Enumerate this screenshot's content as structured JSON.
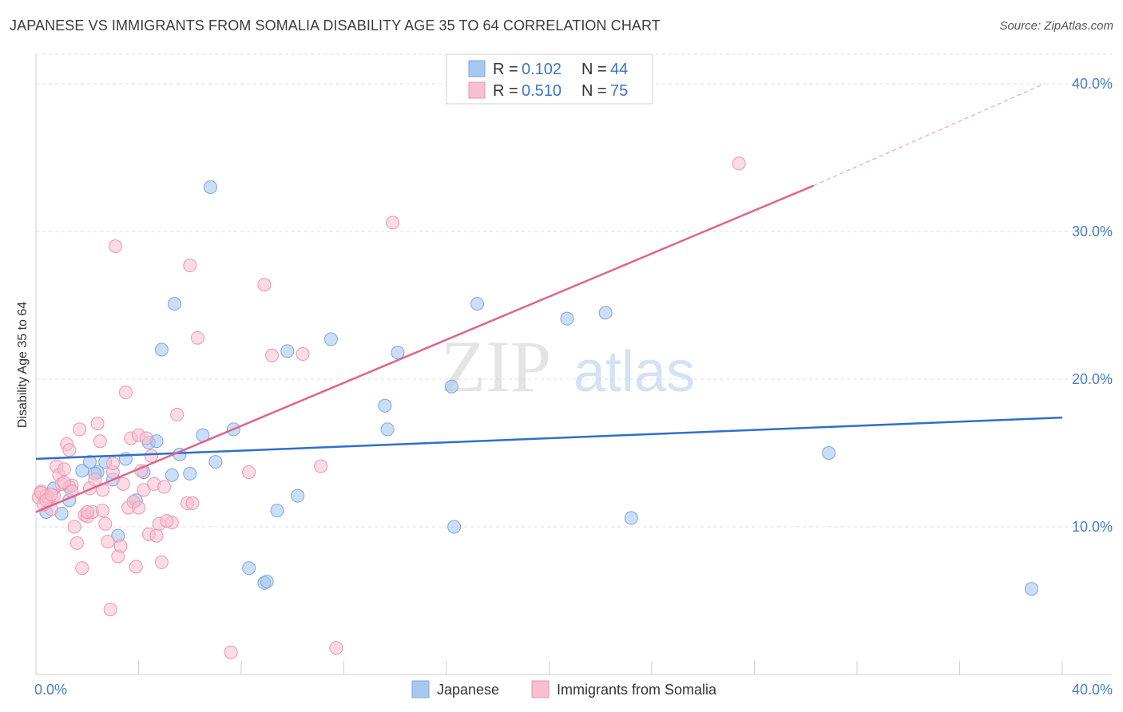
{
  "header": {
    "title": "JAPANESE VS IMMIGRANTS FROM SOMALIA DISABILITY AGE 35 TO 64 CORRELATION CHART",
    "source": "Source: ZipAtlas.com"
  },
  "watermark": {
    "zip": "ZIP",
    "atlas": "atlas"
  },
  "legend": {
    "rows": [
      {
        "r_label": "R =",
        "r_value": "0.102",
        "n_label": "N =",
        "n_value": "44"
      },
      {
        "r_label": "R =",
        "r_value": "0.510",
        "n_label": "N =",
        "n_value": "75"
      }
    ]
  },
  "colors": {
    "japanese_fill": "#a9c8f0",
    "japanese_stroke": "#7aa6e0",
    "japanese_line": "#2f6fca",
    "somalia_fill": "#f7bfd0",
    "somalia_stroke": "#ef93b0",
    "somalia_line": "#e0648c",
    "tick_text": "#4a7cc9",
    "grid": "#dddddd"
  },
  "chart_data": {
    "type": "scatter",
    "xlabel": "",
    "ylabel": "Disability Age 35 to 64",
    "xlim": [
      0,
      40
    ],
    "ylim": [
      0,
      42
    ],
    "x_tick_labels": [
      "0.0%",
      "40.0%"
    ],
    "y_ticks": [
      10,
      20,
      30,
      40
    ],
    "y_tick_labels": [
      "10.0%",
      "20.0%",
      "30.0%",
      "40.0%"
    ],
    "grid": true,
    "legend_position": "top-center",
    "series": [
      {
        "name": "Japanese",
        "color": "#a9c8f0",
        "trend": {
          "x": [
            0,
            40
          ],
          "y": [
            14.6,
            17.4
          ]
        },
        "points": [
          [
            0.4,
            11.0
          ],
          [
            0.7,
            12.6
          ],
          [
            1.3,
            11.8
          ],
          [
            1.0,
            10.9
          ],
          [
            1.3,
            12.7
          ],
          [
            1.8,
            13.8
          ],
          [
            2.1,
            14.4
          ],
          [
            2.4,
            13.7
          ],
          [
            2.7,
            14.4
          ],
          [
            3.0,
            13.2
          ],
          [
            3.5,
            14.6
          ],
          [
            3.9,
            11.8
          ],
          [
            4.2,
            13.7
          ],
          [
            4.4,
            15.7
          ],
          [
            4.7,
            15.8
          ],
          [
            4.9,
            22.0
          ],
          [
            5.3,
            13.5
          ],
          [
            5.6,
            14.9
          ],
          [
            6.0,
            13.6
          ],
          [
            6.5,
            16.2
          ],
          [
            7.0,
            14.4
          ],
          [
            7.7,
            16.6
          ],
          [
            8.3,
            7.2
          ],
          [
            8.9,
            6.2
          ],
          [
            9.0,
            6.3
          ],
          [
            9.4,
            11.1
          ],
          [
            9.8,
            21.9
          ],
          [
            10.2,
            12.1
          ],
          [
            11.5,
            22.7
          ],
          [
            13.6,
            18.2
          ],
          [
            13.7,
            16.6
          ],
          [
            14.1,
            21.8
          ],
          [
            16.2,
            19.5
          ],
          [
            16.3,
            10.0
          ],
          [
            17.2,
            25.1
          ],
          [
            20.7,
            24.1
          ],
          [
            22.2,
            24.5
          ],
          [
            23.2,
            10.6
          ],
          [
            30.9,
            15.0
          ],
          [
            38.8,
            5.8
          ],
          [
            6.8,
            33.0
          ],
          [
            5.4,
            25.1
          ],
          [
            3.2,
            9.4
          ],
          [
            2.3,
            13.6
          ]
        ]
      },
      {
        "name": "Immigrants from Somalia",
        "color": "#f7bfd0",
        "trend": {
          "x": [
            0,
            30.3
          ],
          "y": [
            11.0,
            33.1
          ]
        },
        "trend_dashed": {
          "x": [
            30.3,
            39.3
          ],
          "y": [
            33.1,
            40.0
          ]
        },
        "points": [
          [
            0.1,
            12.0
          ],
          [
            0.2,
            12.4
          ],
          [
            0.3,
            11.5
          ],
          [
            0.4,
            12.1
          ],
          [
            0.5,
            11.9
          ],
          [
            0.6,
            11.2
          ],
          [
            0.7,
            12.1
          ],
          [
            0.8,
            14.1
          ],
          [
            0.9,
            13.5
          ],
          [
            1.0,
            12.9
          ],
          [
            1.1,
            13.9
          ],
          [
            1.2,
            15.6
          ],
          [
            1.3,
            15.2
          ],
          [
            1.4,
            12.8
          ],
          [
            1.5,
            10.0
          ],
          [
            1.6,
            8.9
          ],
          [
            1.7,
            16.6
          ],
          [
            1.8,
            7.2
          ],
          [
            1.9,
            10.8
          ],
          [
            2.0,
            10.7
          ],
          [
            2.1,
            12.6
          ],
          [
            2.2,
            11.0
          ],
          [
            2.3,
            13.2
          ],
          [
            2.4,
            17.0
          ],
          [
            2.5,
            15.8
          ],
          [
            2.6,
            11.1
          ],
          [
            2.7,
            10.2
          ],
          [
            2.8,
            9.0
          ],
          [
            2.9,
            4.4
          ],
          [
            3.0,
            13.7
          ],
          [
            3.1,
            29.0
          ],
          [
            3.2,
            8.0
          ],
          [
            3.3,
            8.7
          ],
          [
            3.4,
            12.9
          ],
          [
            3.5,
            19.1
          ],
          [
            3.6,
            11.3
          ],
          [
            3.7,
            16.0
          ],
          [
            3.8,
            11.7
          ],
          [
            3.9,
            7.3
          ],
          [
            4.0,
            16.2
          ],
          [
            4.1,
            13.8
          ],
          [
            4.2,
            12.5
          ],
          [
            4.3,
            16.0
          ],
          [
            4.4,
            9.5
          ],
          [
            4.5,
            14.8
          ],
          [
            4.6,
            12.9
          ],
          [
            4.7,
            9.4
          ],
          [
            4.8,
            10.2
          ],
          [
            4.9,
            7.6
          ],
          [
            5.0,
            12.7
          ],
          [
            5.3,
            10.3
          ],
          [
            5.5,
            17.6
          ],
          [
            5.9,
            11.6
          ],
          [
            6.0,
            27.7
          ],
          [
            6.3,
            22.8
          ],
          [
            7.6,
            1.5
          ],
          [
            8.3,
            13.7
          ],
          [
            8.9,
            26.4
          ],
          [
            9.2,
            21.6
          ],
          [
            10.4,
            21.7
          ],
          [
            11.1,
            14.1
          ],
          [
            11.7,
            1.8
          ],
          [
            13.9,
            30.6
          ],
          [
            27.4,
            34.6
          ],
          [
            0.2,
            12.3
          ],
          [
            0.4,
            11.8
          ],
          [
            0.6,
            12.2
          ],
          [
            1.1,
            13.0
          ],
          [
            1.4,
            12.4
          ],
          [
            2.0,
            11.0
          ],
          [
            2.6,
            12.5
          ],
          [
            3.0,
            14.3
          ],
          [
            4.0,
            11.3
          ],
          [
            5.1,
            10.4
          ],
          [
            6.1,
            11.6
          ]
        ]
      }
    ]
  },
  "bottom_legend": {
    "items": [
      "Japanese",
      "Immigrants from Somalia"
    ]
  }
}
